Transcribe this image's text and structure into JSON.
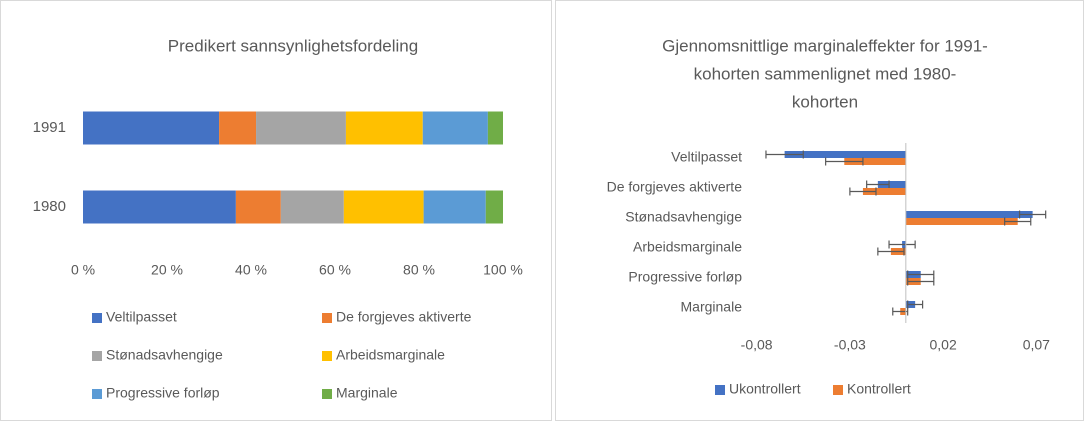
{
  "chart_data": [
    {
      "type": "stacked-bar",
      "orientation": "horizontal",
      "title": "Predikert sannsynlighetsfordeling",
      "categories": [
        "1991",
        "1980"
      ],
      "series": [
        {
          "name": "Veltilpasset",
          "color": "#4472c4",
          "values": [
            32.4,
            36.4
          ]
        },
        {
          "name": "De forgjeves aktiverte",
          "color": "#ed7d31",
          "values": [
            8.8,
            10.7
          ]
        },
        {
          "name": "Stønadsavhengige",
          "color": "#a5a5a5",
          "values": [
            21.4,
            15.0
          ]
        },
        {
          "name": "Arbeidsmarginale",
          "color": "#ffc000",
          "values": [
            18.3,
            19.0
          ]
        },
        {
          "name": "Progressive forløp",
          "color": "#5b9bd5",
          "values": [
            15.5,
            14.8
          ]
        },
        {
          "name": "Marginale",
          "color": "#70ad47",
          "values": [
            3.6,
            4.1
          ]
        }
      ],
      "xlim": [
        0,
        100
      ],
      "xticks": [
        {
          "value": 0,
          "label": "0 %"
        },
        {
          "value": 20,
          "label": "20 %"
        },
        {
          "value": 40,
          "label": "40 %"
        },
        {
          "value": 60,
          "label": "60 %"
        },
        {
          "value": 80,
          "label": "80 %"
        },
        {
          "value": 100,
          "label": "100 %"
        }
      ],
      "grid": false,
      "legend": "bottom"
    },
    {
      "type": "error-bar",
      "orientation": "horizontal",
      "title": [
        "Gjennomsnittlige marginaleffekter for 1991-",
        "kohorten sammenlignet med 1980-",
        "kohorten"
      ],
      "categories": [
        "Veltilpasset",
        "De forgjeves aktiverte",
        "Stønadsavhengige",
        "Arbeidsmarginale",
        "Progressive forløp",
        "Marginale"
      ],
      "series": [
        {
          "name": "Ukontrollert",
          "color": "#4472c4",
          "values": [
            -0.065,
            -0.015,
            0.068,
            -0.002,
            0.008,
            0.005
          ],
          "errors": [
            0.01,
            0.006,
            0.007,
            0.007,
            0.007,
            0.004
          ]
        },
        {
          "name": "Kontrollert",
          "color": "#ed7d31",
          "values": [
            -0.033,
            -0.023,
            0.06,
            -0.008,
            0.008,
            -0.003
          ],
          "errors": [
            0.01,
            0.007,
            0.007,
            0.007,
            0.007,
            0.004
          ]
        }
      ],
      "xlim": [
        -0.09,
        0.08
      ],
      "xticks": [
        {
          "value": -0.08,
          "label": "-0,08"
        },
        {
          "value": -0.03,
          "label": "-0,03"
        },
        {
          "value": 0.02,
          "label": "0,02"
        },
        {
          "value": 0.07,
          "label": "0,07"
        }
      ],
      "grid": false,
      "legend": "bottom"
    }
  ]
}
